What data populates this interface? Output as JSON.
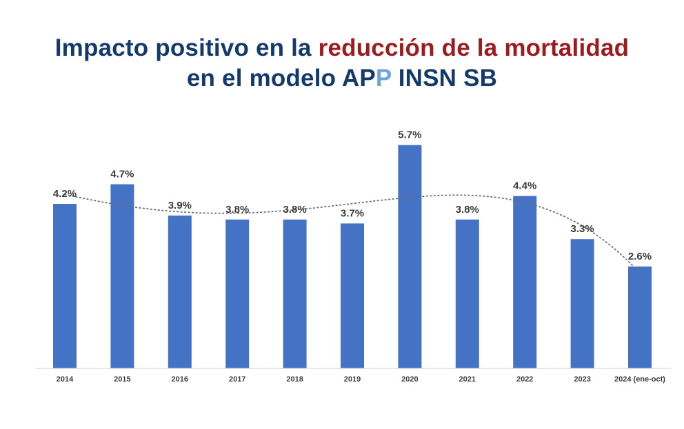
{
  "title": {
    "line1_prefix": "Impacto positivo en la ",
    "line1_accent": "reducción de la mortalidad",
    "line2_prefix": "en el modelo AP",
    "line2_light": "P",
    "line2_suffix": " INSN SB"
  },
  "colors": {
    "title": "#133a6b",
    "accent": "#9b1b1f",
    "light": "#6aa6dc",
    "bar": "#4472c4",
    "trend": "#6b6b7a"
  },
  "chart_data": {
    "type": "bar",
    "categories": [
      "2014",
      "2015",
      "2016",
      "2017",
      "2018",
      "2019",
      "2020",
      "2021",
      "2022",
      "2023",
      "2024 (ene-oct)"
    ],
    "values": [
      4.2,
      4.7,
      3.9,
      3.8,
      3.8,
      3.7,
      5.7,
      3.8,
      4.4,
      3.3,
      2.6
    ],
    "data_labels": [
      "4.2%",
      "4.7%",
      "3.9%",
      "3.8%",
      "3.8%",
      "3.7%",
      "5.7%",
      "3.8%",
      "4.4%",
      "3.3%",
      "2.6%"
    ],
    "unit": "%",
    "trendline": "dotted polynomial",
    "grid": false,
    "legend": "none"
  }
}
